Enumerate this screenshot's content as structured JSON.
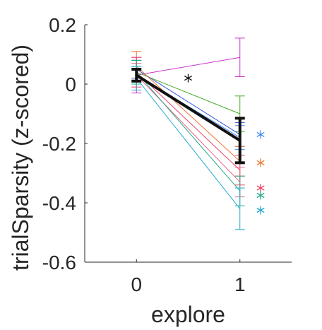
{
  "chart_data": {
    "type": "line",
    "title": "",
    "xlabel": "explore",
    "ylabel": "trialSparsity (z-scored)",
    "xlim": [
      -0.5,
      1.5
    ],
    "ylim": [
      -0.6,
      0.2
    ],
    "x": [
      0,
      1
    ],
    "xticks": [
      0,
      1
    ],
    "yticks": [
      0.2,
      0,
      -0.2,
      -0.4,
      -0.6
    ],
    "xticklabels": [
      "0",
      "1"
    ],
    "yticklabels": [
      "0.2",
      "0",
      "-0.2",
      "-0.4",
      "-0.6"
    ],
    "grid": false,
    "legend": "none",
    "series": [
      {
        "color": "#cc33cc",
        "values": [
          0.03,
          0.09
        ],
        "err": [
          0.06,
          0.065
        ]
      },
      {
        "color": "#44aa22",
        "values": [
          0.04,
          -0.1
        ],
        "err": [
          0.04,
          0.06
        ]
      },
      {
        "color": "#3355dd",
        "values": [
          0.05,
          -0.17
        ],
        "err": [
          0.03,
          0.04
        ]
      },
      {
        "color": "#4488ee",
        "values": [
          0.03,
          -0.18
        ],
        "err": [
          0.03,
          0.04
        ]
      },
      {
        "color": "#ee7733",
        "values": [
          0.06,
          -0.26
        ],
        "err": [
          0.05,
          0.05
        ]
      },
      {
        "color": "#ee4466",
        "values": [
          0.04,
          -0.29
        ],
        "err": [
          0.05,
          0.05
        ]
      },
      {
        "color": "#ee6688",
        "values": [
          0.03,
          -0.33
        ],
        "err": [
          0.04,
          0.05
        ]
      },
      {
        "color": "#22aa88",
        "values": [
          0.04,
          -0.36
        ],
        "err": [
          0.04,
          0.05
        ]
      },
      {
        "color": "#22aacc",
        "values": [
          0.02,
          -0.42
        ],
        "err": [
          0.04,
          0.07
        ]
      }
    ],
    "mean_series": {
      "color": "#111111",
      "values": [
        0.03,
        -0.19
      ],
      "err": [
        0.02,
        0.075
      ]
    },
    "markers": [
      {
        "x": 0.5,
        "y": 0.02,
        "color": "#111111"
      },
      {
        "x": 1.2,
        "y": -0.17,
        "color": "#4488ee"
      },
      {
        "x": 1.2,
        "y": -0.265,
        "color": "#ee7733"
      },
      {
        "x": 1.2,
        "y": -0.35,
        "color": "#ee4466"
      },
      {
        "x": 1.2,
        "y": -0.375,
        "color": "#22aa88"
      },
      {
        "x": 1.2,
        "y": -0.425,
        "color": "#22aacc"
      }
    ]
  }
}
